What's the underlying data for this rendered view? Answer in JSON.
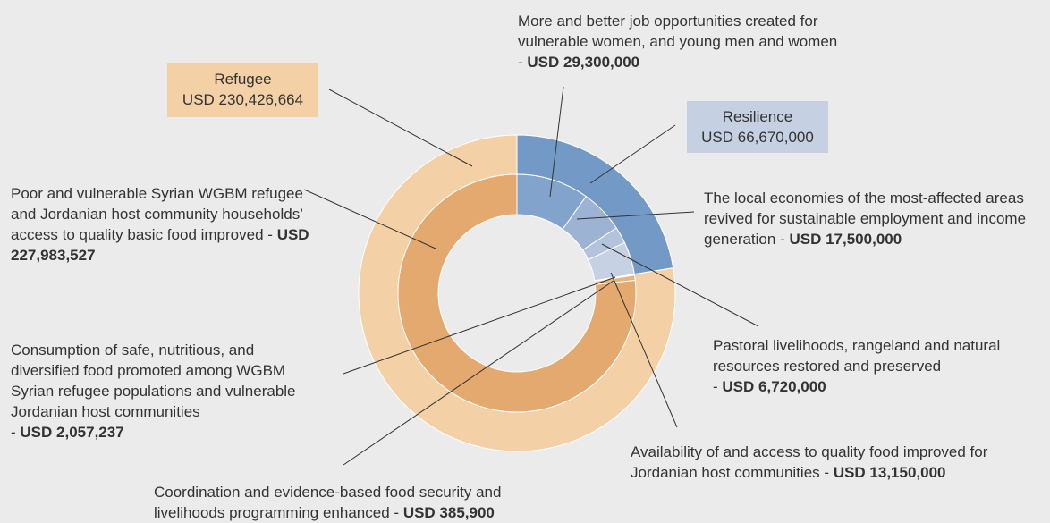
{
  "chart_data": {
    "type": "sunburst",
    "separator": "-",
    "rings": [
      {
        "categories": [
          "Resilience",
          "Refugee"
        ],
        "values": [
          66670000,
          230426664
        ],
        "value_labels": [
          "USD 66,670,000",
          "USD 230,426,664"
        ],
        "colors": [
          "#7399c6",
          "#f3d0a6"
        ]
      },
      {
        "categories": [
          "More and better job opportunities created for vulnerable women, and young men and women",
          "The local economies of the most-affected areas revived for sustainable employment and income generation",
          "Pastoral livelihoods, rangeland and natural resources restored and preserved",
          "Availability of and access to quality food improved for Jordanian host communities",
          "Coordination and evidence-based food security and livelihoods programming enhanced",
          "Consumption of safe, nutritious, and diversified food promoted among WGBM Syrian refugee populations and vulnerable Jordanian host communities",
          "Poor and vulnerable Syrian WGBM refugee and Jordanian host community households’ access to quality basic food improved"
        ],
        "values": [
          29300000,
          17500000,
          6720000,
          13150000,
          385900,
          2057237,
          227983527
        ],
        "value_labels": [
          "USD 29,300,000",
          "USD 17,500,000",
          "USD 6,720,000",
          "USD 13,150,000",
          "USD 385,900",
          "USD 2,057,237",
          "USD 227,983,527"
        ],
        "colors": [
          "#82a3cc",
          "#9cb3d3",
          "#b2c3db",
          "#c6d2e3",
          "#d08a45",
          "#e8b47d",
          "#e4a96e"
        ]
      }
    ]
  }
}
